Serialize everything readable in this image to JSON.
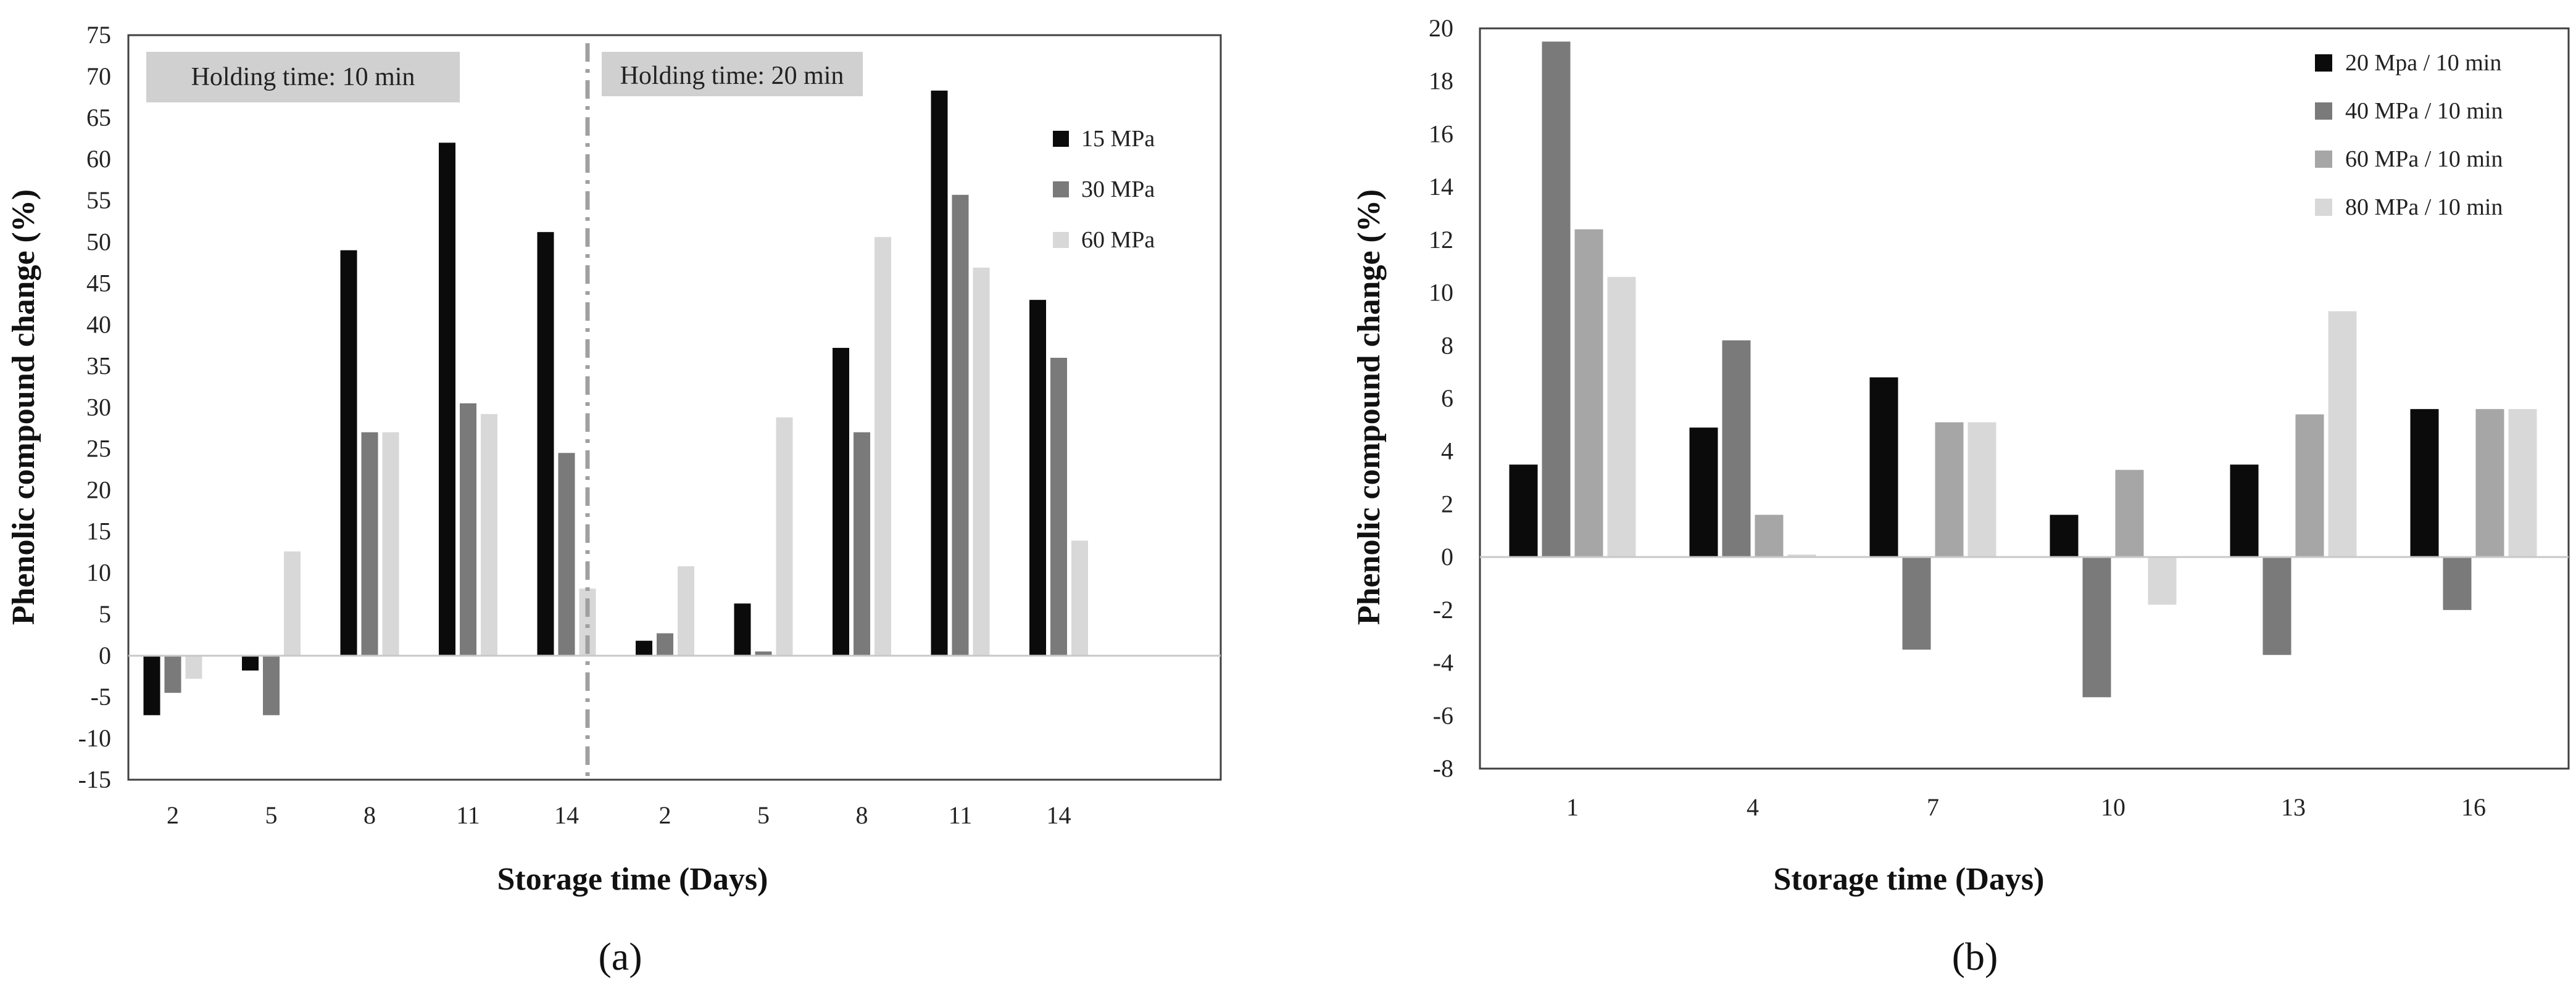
{
  "colors": {
    "black": "#0b0b0b",
    "dark_gray": "#7a7a7a",
    "mid_gray": "#a6a6a6",
    "light_gray": "#d8d8d8",
    "label_bg": "#d0d0d0",
    "divider": "#a0a0a0"
  },
  "chart_data": [
    {
      "id": "a",
      "type": "bar",
      "panel_label": "(a)",
      "xlabel": "Storage time (Days)",
      "ylabel": "Phenolic compound change (%)",
      "ylim": [
        -15,
        75
      ],
      "yticks": [
        "75",
        "70",
        "65",
        "60",
        "55",
        "50",
        "45",
        "40",
        "35",
        "30",
        "25",
        "20",
        "15",
        "10",
        "5",
        "0",
        "-5",
        "-10",
        "-15"
      ],
      "categories": [
        "2",
        "5",
        "8",
        "11",
        "14",
        "2",
        "5",
        "8",
        "11",
        "14"
      ],
      "holding_labels": [
        "Holding time: 10 min",
        "Holding time: 20 min"
      ],
      "series": [
        {
          "name": "15 MPa",
          "color": "#0b0b0b",
          "values": [
            -7.2,
            -1.8,
            49,
            62,
            51.2,
            1.8,
            6.3,
            37.2,
            68.3,
            43
          ]
        },
        {
          "name": "30 MPa",
          "color": "#7a7a7a",
          "values": [
            -4.5,
            -7.2,
            27,
            30.5,
            24.5,
            2.7,
            0.5,
            27,
            55.7,
            36
          ]
        },
        {
          "name": "60 MPa",
          "color": "#d8d8d8",
          "values": [
            -2.8,
            12.6,
            27,
            29.2,
            8.1,
            10.8,
            28.8,
            50.6,
            46.9,
            13.9
          ]
        }
      ]
    },
    {
      "id": "b",
      "type": "bar",
      "panel_label": "(b)",
      "xlabel": "Storage time (Days)",
      "ylabel": "Phenolic compound change (%)",
      "ylim": [
        -8,
        20
      ],
      "yticks": [
        "20",
        "18",
        "16",
        "14",
        "12",
        "10",
        "8",
        "6",
        "4",
        "2",
        "0",
        "-2",
        "-4",
        "-6",
        "-8"
      ],
      "categories": [
        "1",
        "4",
        "7",
        "10",
        "13",
        "16"
      ],
      "series": [
        {
          "name": "20 Mpa / 10 min",
          "color": "#0b0b0b",
          "values": [
            3.5,
            4.9,
            6.8,
            1.6,
            3.5,
            5.6
          ]
        },
        {
          "name": "40 MPa / 10 min",
          "color": "#7a7a7a",
          "values": [
            19.5,
            8.2,
            -3.5,
            -5.3,
            -3.7,
            -2
          ]
        },
        {
          "name": "60 MPa / 10 min",
          "color": "#a6a6a6",
          "values": [
            12.4,
            1.6,
            5.1,
            3.3,
            5.4,
            5.6
          ]
        },
        {
          "name": "80 MPa / 10 min",
          "color": "#d8d8d8",
          "values": [
            10.6,
            0.1,
            5.1,
            -1.8,
            9.3,
            5.6
          ]
        }
      ]
    }
  ]
}
